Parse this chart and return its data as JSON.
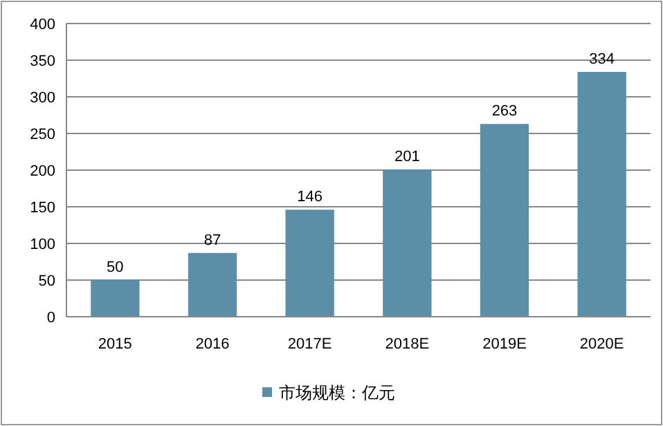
{
  "chart_data": {
    "type": "bar",
    "categories": [
      "2015",
      "2016",
      "2017E",
      "2018E",
      "2019E",
      "2020E"
    ],
    "series": [
      {
        "name": "市场规模：亿元",
        "color": "#5b8fa8",
        "values": [
          50,
          87,
          146,
          201,
          263,
          334
        ]
      }
    ],
    "ylim": [
      0,
      400
    ],
    "yticks": [
      0,
      50,
      100,
      150,
      200,
      250,
      300,
      350,
      400
    ],
    "grid": "y",
    "legend": "bottom",
    "data_labels": true
  }
}
